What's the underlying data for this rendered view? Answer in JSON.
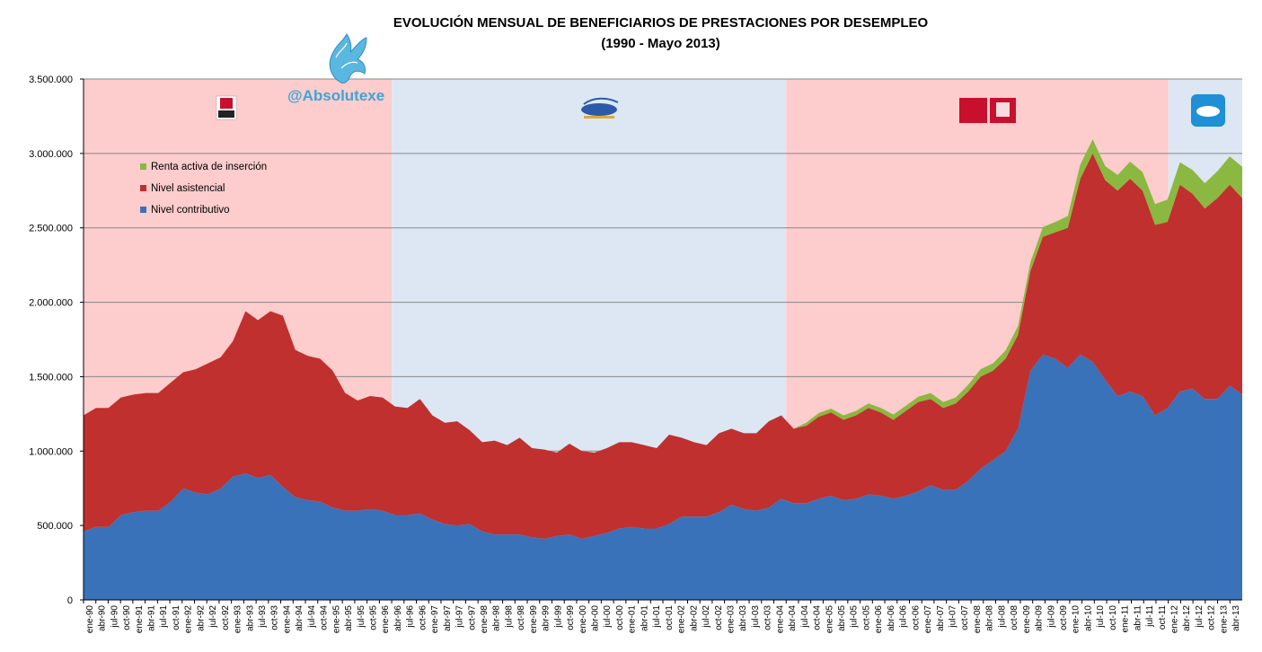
{
  "chart_data": {
    "type": "area",
    "stacked": true,
    "title": "EVOLUCIÓN MENSUAL DE BENEFICIARIOS DE PRESTACIONES POR DESEMPLEO",
    "subtitle": "(1990 - Mayo 2013)",
    "watermark": "@Absolutexe",
    "ylim": [
      0,
      3500000
    ],
    "yticks": [
      0,
      500000,
      1000000,
      1500000,
      2000000,
      2500000,
      3000000,
      3500000
    ],
    "ytick_labels": [
      "0",
      "500.000",
      "1.000.000",
      "1.500.000",
      "2.000.000",
      "2.500.000",
      "3.000.000",
      "3.500.000"
    ],
    "grid": true,
    "legend_position": "top-left",
    "xtick_labels": [
      "ene-90",
      "abr-90",
      "jul-90",
      "oct-90",
      "ene-91",
      "abr-91",
      "jul-91",
      "oct-91",
      "ene-92",
      "abr-92",
      "jul-92",
      "oct-92",
      "ene-93",
      "abr-93",
      "jul-93",
      "oct-93",
      "ene-94",
      "abr-94",
      "jul-94",
      "oct-94",
      "ene-95",
      "abr-95",
      "jul-95",
      "oct-95",
      "ene-96",
      "abr-96",
      "jul-96",
      "oct-96",
      "ene-97",
      "abr-97",
      "jul-97",
      "oct-97",
      "ene-98",
      "abr-98",
      "jul-98",
      "oct-98",
      "ene-99",
      "abr-99",
      "jul-99",
      "oct-99",
      "ene-00",
      "abr-00",
      "jul-00",
      "oct-00",
      "ene-01",
      "abr-01",
      "jul-01",
      "oct-01",
      "ene-02",
      "abr-02",
      "jul-02",
      "oct-02",
      "ene-03",
      "abr-03",
      "jul-03",
      "oct-03",
      "ene-04",
      "abr-04",
      "jul-04",
      "oct-04",
      "ene-05",
      "abr-05",
      "jul-05",
      "oct-05",
      "ene-06",
      "abr-06",
      "jul-06",
      "oct-06",
      "ene-07",
      "abr-07",
      "jul-07",
      "oct-07",
      "ene-08",
      "abr-08",
      "jul-08",
      "oct-08",
      "ene-09",
      "abr-09",
      "jul-09",
      "oct-09",
      "ene-10",
      "abr-10",
      "jul-10",
      "oct-10",
      "ene-11",
      "abr-11",
      "jul-11",
      "oct-11",
      "ene-12",
      "abr-12",
      "jul-12",
      "oct-12",
      "ene-13",
      "abr-13"
    ],
    "periods": [
      {
        "party": "PSOE",
        "start_quarter": 0,
        "end_quarter": 25,
        "color": "#fdcccc"
      },
      {
        "party": "PP",
        "start_quarter": 25,
        "end_quarter": 57,
        "color": "#dce7f3"
      },
      {
        "party": "PSOE",
        "start_quarter": 57,
        "end_quarter": 88,
        "color": "#fdcccc"
      },
      {
        "party": "PP",
        "start_quarter": 88,
        "end_quarter": 94,
        "color": "#dce7f3"
      }
    ],
    "series": [
      {
        "name": "Nivel contributivo",
        "color": "#3a72b9",
        "values": [
          460000,
          490000,
          490000,
          570000,
          590000,
          600000,
          600000,
          660000,
          750000,
          720000,
          710000,
          750000,
          830000,
          850000,
          820000,
          840000,
          760000,
          690000,
          670000,
          660000,
          620000,
          600000,
          600000,
          610000,
          600000,
          570000,
          570000,
          580000,
          540000,
          510000,
          500000,
          510000,
          460000,
          440000,
          440000,
          440000,
          420000,
          410000,
          430000,
          440000,
          410000,
          430000,
          450000,
          480000,
          490000,
          480000,
          480000,
          510000,
          560000,
          560000,
          560000,
          590000,
          640000,
          610000,
          600000,
          620000,
          680000,
          650000,
          650000,
          680000,
          700000,
          670000,
          680000,
          710000,
          700000,
          680000,
          700000,
          730000,
          770000,
          740000,
          740000,
          800000,
          880000,
          940000,
          1000000,
          1150000,
          1540000,
          1650000,
          1620000,
          1560000,
          1650000,
          1600000,
          1480000,
          1370000,
          1400000,
          1370000,
          1240000,
          1290000,
          1400000,
          1420000,
          1350000,
          1350000,
          1440000,
          1380000
        ]
      },
      {
        "name": "Nivel asistencial",
        "color": "#c0302e",
        "values": [
          780000,
          800000,
          800000,
          790000,
          790000,
          790000,
          790000,
          800000,
          780000,
          830000,
          880000,
          880000,
          910000,
          1090000,
          1060000,
          1100000,
          1150000,
          990000,
          970000,
          960000,
          920000,
          790000,
          740000,
          760000,
          760000,
          730000,
          720000,
          770000,
          700000,
          680000,
          700000,
          630000,
          600000,
          630000,
          600000,
          650000,
          600000,
          600000,
          560000,
          610000,
          590000,
          560000,
          570000,
          580000,
          570000,
          560000,
          540000,
          600000,
          530000,
          500000,
          480000,
          530000,
          510000,
          510000,
          520000,
          580000,
          560000,
          500000,
          520000,
          550000,
          560000,
          540000,
          560000,
          580000,
          560000,
          530000,
          570000,
          600000,
          580000,
          550000,
          580000,
          600000,
          620000,
          600000,
          620000,
          630000,
          670000,
          790000,
          850000,
          940000,
          1180000,
          1400000,
          1340000,
          1380000,
          1430000,
          1380000,
          1280000,
          1250000,
          1390000,
          1310000,
          1280000,
          1350000,
          1350000,
          1320000
        ]
      },
      {
        "name": "Renta activa de inserción",
        "color": "#8bb840",
        "values": [
          0,
          0,
          0,
          0,
          0,
          0,
          0,
          0,
          0,
          0,
          0,
          0,
          0,
          0,
          0,
          0,
          0,
          0,
          0,
          0,
          0,
          0,
          0,
          0,
          0,
          0,
          0,
          0,
          0,
          0,
          0,
          0,
          0,
          0,
          0,
          0,
          0,
          0,
          0,
          0,
          0,
          0,
          0,
          0,
          0,
          0,
          0,
          0,
          0,
          0,
          0,
          0,
          0,
          0,
          0,
          0,
          0,
          0,
          20000,
          25000,
          25000,
          30000,
          30000,
          30000,
          30000,
          35000,
          35000,
          35000,
          40000,
          40000,
          40000,
          45000,
          50000,
          50000,
          55000,
          60000,
          60000,
          65000,
          70000,
          80000,
          95000,
          95000,
          95000,
          105000,
          115000,
          125000,
          140000,
          150000,
          150000,
          160000,
          170000,
          180000,
          190000,
          210000
        ]
      }
    ]
  }
}
